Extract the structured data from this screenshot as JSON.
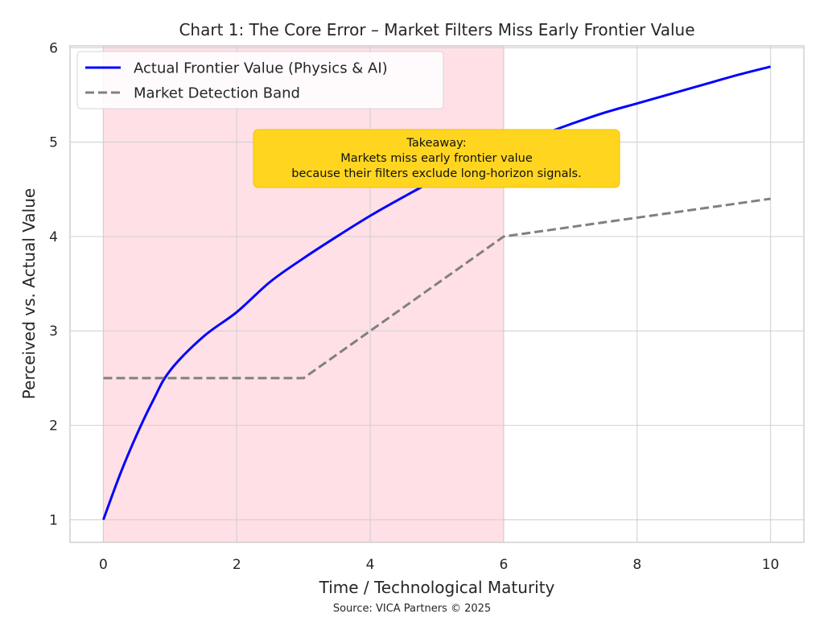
{
  "chart_data": {
    "type": "line",
    "title": "Chart 1: The Core Error – Market Filters Miss Early Frontier Value",
    "xlabel": "Time / Technological Maturity",
    "ylabel": "Perceived vs. Actual Value",
    "xlim": [
      -0.5,
      10.5
    ],
    "ylim": [
      0.76,
      6.02
    ],
    "xticks": [
      0,
      2,
      4,
      6,
      8,
      10
    ],
    "yticks": [
      1,
      2,
      3,
      4,
      5,
      6
    ],
    "grid": true,
    "legend_position": "top-left",
    "shaded_region": {
      "x": [
        0,
        6
      ],
      "color": "#ffe0e6"
    },
    "series": [
      {
        "name": "Actual Frontier Value (Physics & AI)",
        "style": "solid",
        "color": "#0000ff",
        "x": [
          0,
          0.25,
          0.5,
          0.75,
          1,
          1.5,
          2,
          2.5,
          3,
          3.5,
          4,
          4.5,
          5,
          5.5,
          6,
          6.5,
          7,
          7.5,
          8,
          8.5,
          9,
          9.5,
          10
        ],
        "y": [
          1.0,
          1.48,
          1.9,
          2.27,
          2.58,
          2.94,
          3.2,
          3.52,
          3.77,
          4.0,
          4.22,
          4.42,
          4.61,
          4.78,
          4.92,
          5.06,
          5.19,
          5.31,
          5.41,
          5.51,
          5.61,
          5.71,
          5.8
        ]
      },
      {
        "name": "Market Detection Band",
        "style": "dashed",
        "color": "#808080",
        "x": [
          0,
          3,
          6,
          10
        ],
        "y": [
          2.5,
          2.5,
          4.0,
          4.4
        ]
      }
    ],
    "annotation": {
      "lines": [
        "Takeaway:",
        "Markets miss early frontier value",
        "because their filters exclude long-horizon signals."
      ],
      "color": "#ffd520"
    },
    "source": "Source: VICA Partners © 2025"
  }
}
